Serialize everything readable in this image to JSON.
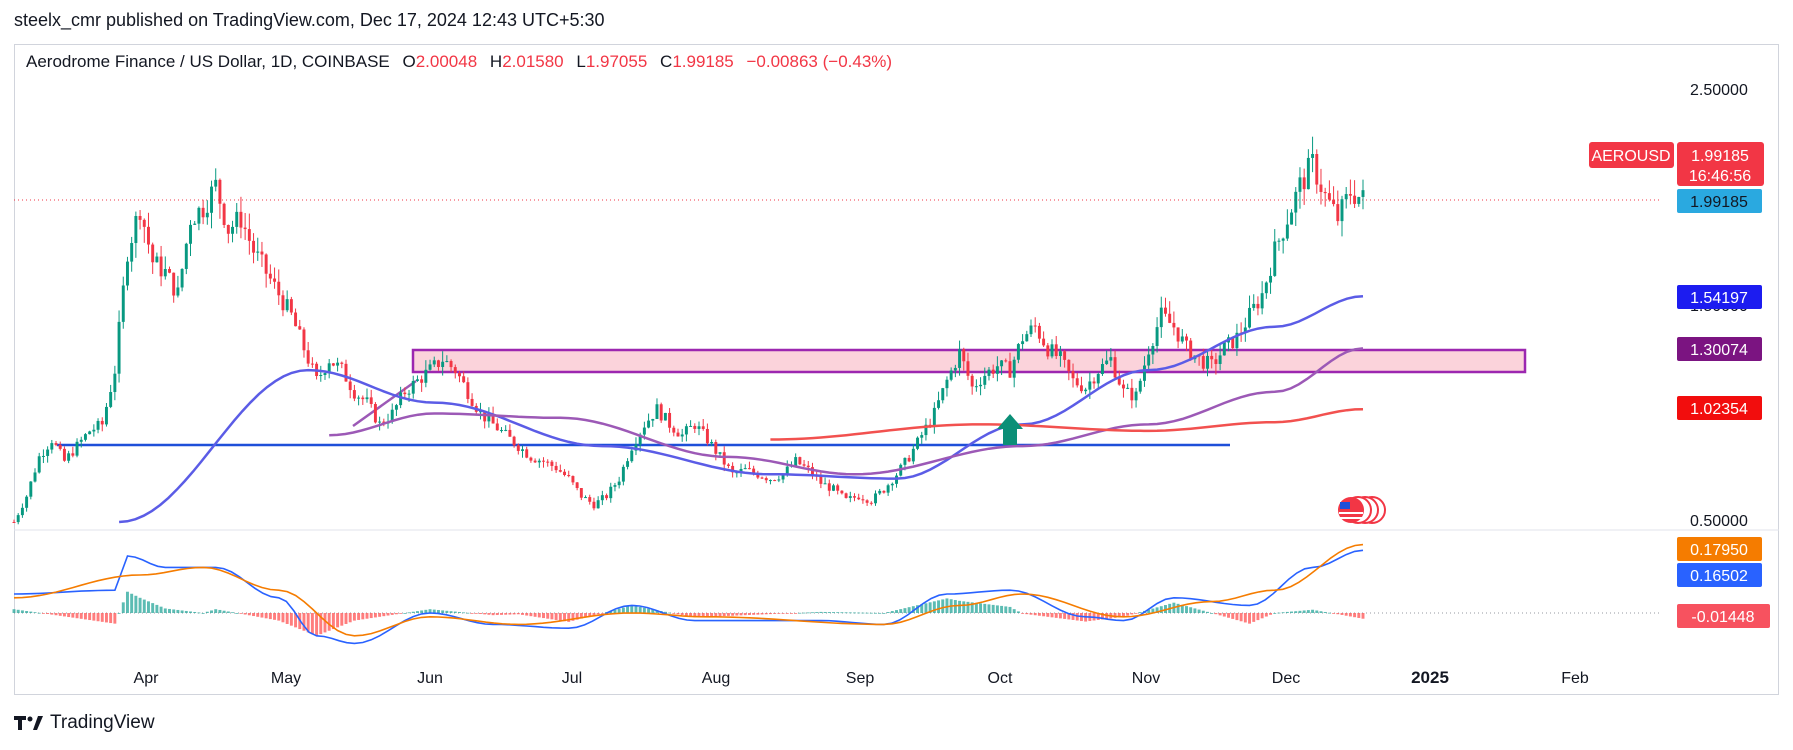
{
  "published": "steelx_cmr published on TradingView.com, Dec 17, 2024 12:43 UTC+5:30",
  "legend": {
    "symbol": "Aerodrome Finance / US Dollar, 1D, COINBASE",
    "o_label": "O",
    "o_value": "2.00048",
    "h_label": "H",
    "h_value": "2.01580",
    "l_label": "L",
    "l_value": "1.97055",
    "c_label": "C",
    "c_value": "1.99185",
    "change": "−0.00863 (−0.43%)"
  },
  "brand": "TradingView",
  "chart_data": {
    "type": "candlestick",
    "title": "Aerodrome Finance / US Dollar, 1D, COINBASE",
    "price_axis_ticks": [
      "2.50000",
      "0.50000"
    ],
    "time_axis_ticks": [
      "Apr",
      "May",
      "Jun",
      "Jul",
      "Aug",
      "Sep",
      "Oct",
      "Nov",
      "Dec",
      "2025",
      "Feb"
    ],
    "price_labels": {
      "ticker": "AEROUSD",
      "last": "1.99185",
      "countdown": "16:46:56",
      "last_line": "1.99185",
      "ma_blue": "1.54197",
      "ma_purple": "1.30074",
      "ma_red": "1.02354",
      "macd_signal": "0.17950",
      "macd_line": "0.16502",
      "macd_hist": "-0.01448"
    },
    "colors": {
      "up": "#089981",
      "down": "#f23645",
      "ma_blue": "#5b5ce6",
      "ma_purple": "#9c59b6",
      "ma_red": "#f2514f",
      "zone_fill": "#fbd3db",
      "zone_border": "#9c27b0",
      "support": "#1e4fd9",
      "macd": "#2962ff",
      "signal": "#f57c00",
      "arrow": "#0b8f77"
    },
    "ohlc_close_path": [
      [
        0,
        0.5
      ],
      [
        3,
        0.62
      ],
      [
        6,
        0.8
      ],
      [
        9,
        0.88
      ],
      [
        12,
        0.78
      ],
      [
        15,
        0.85
      ],
      [
        18,
        0.92
      ],
      [
        21,
        0.95
      ],
      [
        24,
        1.2
      ],
      [
        27,
        1.75
      ],
      [
        30,
        1.95
      ],
      [
        33,
        1.7
      ],
      [
        36,
        1.65
      ],
      [
        39,
        1.55
      ],
      [
        42,
        1.9
      ],
      [
        45,
        1.95
      ],
      [
        48,
        2.05
      ],
      [
        51,
        1.85
      ],
      [
        54,
        1.9
      ],
      [
        57,
        1.75
      ],
      [
        60,
        1.65
      ],
      [
        63,
        1.55
      ],
      [
        66,
        1.45
      ],
      [
        69,
        1.3
      ],
      [
        72,
        1.15
      ],
      [
        75,
        1.25
      ],
      [
        78,
        1.2
      ],
      [
        81,
        1.1
      ],
      [
        84,
        1.05
      ],
      [
        87,
        0.95
      ],
      [
        90,
        1.0
      ],
      [
        93,
        1.1
      ],
      [
        96,
        1.15
      ],
      [
        99,
        1.2
      ],
      [
        102,
        1.25
      ],
      [
        105,
        1.2
      ],
      [
        108,
        1.1
      ],
      [
        111,
        1.0
      ],
      [
        114,
        0.95
      ],
      [
        117,
        0.9
      ],
      [
        120,
        0.85
      ],
      [
        123,
        0.8
      ],
      [
        126,
        0.78
      ],
      [
        129,
        0.75
      ],
      [
        132,
        0.7
      ],
      [
        135,
        0.62
      ],
      [
        138,
        0.58
      ],
      [
        141,
        0.62
      ],
      [
        144,
        0.7
      ],
      [
        147,
        0.85
      ],
      [
        150,
        0.95
      ],
      [
        153,
        1.02
      ],
      [
        156,
        0.95
      ],
      [
        159,
        0.9
      ],
      [
        162,
        0.95
      ],
      [
        165,
        0.88
      ],
      [
        168,
        0.8
      ],
      [
        171,
        0.72
      ],
      [
        174,
        0.74
      ],
      [
        177,
        0.72
      ],
      [
        180,
        0.7
      ],
      [
        183,
        0.72
      ],
      [
        186,
        0.78
      ],
      [
        189,
        0.74
      ],
      [
        192,
        0.68
      ],
      [
        195,
        0.65
      ],
      [
        198,
        0.6
      ],
      [
        201,
        0.62
      ],
      [
        204,
        0.6
      ],
      [
        207,
        0.65
      ],
      [
        210,
        0.72
      ],
      [
        213,
        0.8
      ],
      [
        216,
        0.9
      ],
      [
        219,
        1.0
      ],
      [
        222,
        1.15
      ],
      [
        225,
        1.28
      ],
      [
        228,
        1.12
      ],
      [
        231,
        1.18
      ],
      [
        234,
        1.22
      ],
      [
        237,
        1.2
      ],
      [
        240,
        1.35
      ],
      [
        243,
        1.4
      ],
      [
        246,
        1.3
      ],
      [
        249,
        1.25
      ],
      [
        252,
        1.15
      ],
      [
        255,
        1.12
      ],
      [
        258,
        1.2
      ],
      [
        261,
        1.25
      ],
      [
        264,
        1.1
      ],
      [
        267,
        1.08
      ],
      [
        270,
        1.3
      ],
      [
        273,
        1.45
      ],
      [
        276,
        1.4
      ],
      [
        279,
        1.3
      ],
      [
        282,
        1.25
      ],
      [
        285,
        1.22
      ],
      [
        288,
        1.3
      ],
      [
        291,
        1.35
      ],
      [
        294,
        1.45
      ],
      [
        297,
        1.55
      ],
      [
        300,
        1.75
      ],
      [
        303,
        1.9
      ],
      [
        306,
        2.05
      ],
      [
        309,
        2.15
      ],
      [
        312,
        2.0
      ],
      [
        315,
        1.9
      ],
      [
        318,
        2.02
      ],
      [
        321,
        1.99
      ]
    ],
    "moving_averages": {
      "blue": [
        [
          25,
          0.5
        ],
        [
          70,
          1.2
        ],
        [
          100,
          1.05
        ],
        [
          140,
          0.85
        ],
        [
          180,
          0.72
        ],
        [
          210,
          0.7
        ],
        [
          240,
          0.95
        ],
        [
          270,
          1.2
        ],
        [
          300,
          1.4
        ],
        [
          321,
          1.54
        ]
      ],
      "purple": [
        [
          75,
          0.9
        ],
        [
          100,
          1.0
        ],
        [
          130,
          0.98
        ],
        [
          170,
          0.8
        ],
        [
          200,
          0.72
        ],
        [
          240,
          0.85
        ],
        [
          270,
          0.95
        ],
        [
          300,
          1.1
        ],
        [
          321,
          1.3
        ]
      ],
      "red": [
        [
          180,
          0.88
        ],
        [
          230,
          0.95
        ],
        [
          270,
          0.92
        ],
        [
          300,
          0.96
        ],
        [
          321,
          1.02
        ]
      ]
    },
    "support_level": 0.82,
    "resistance_zone": [
      1.18,
      1.3
    ],
    "macd": {
      "macd_line": [
        [
          0,
          0.05
        ],
        [
          24,
          0.06
        ],
        [
          27,
          0.15
        ],
        [
          36,
          0.12
        ],
        [
          48,
          0.12
        ],
        [
          63,
          0.04
        ],
        [
          72,
          -0.06
        ],
        [
          81,
          -0.08
        ],
        [
          99,
          0.0
        ],
        [
          114,
          -0.03
        ],
        [
          132,
          -0.04
        ],
        [
          147,
          0.02
        ],
        [
          162,
          -0.02
        ],
        [
          192,
          -0.02
        ],
        [
          207,
          -0.03
        ],
        [
          222,
          0.05
        ],
        [
          237,
          0.06
        ],
        [
          255,
          -0.01
        ],
        [
          264,
          -0.02
        ],
        [
          276,
          0.04
        ],
        [
          294,
          0.02
        ],
        [
          309,
          0.12
        ],
        [
          321,
          0.165
        ]
      ],
      "signal_line": [
        [
          0,
          0.04
        ],
        [
          30,
          0.1
        ],
        [
          45,
          0.12
        ],
        [
          63,
          0.06
        ],
        [
          81,
          -0.06
        ],
        [
          99,
          -0.01
        ],
        [
          120,
          -0.03
        ],
        [
          147,
          0.0
        ],
        [
          165,
          -0.01
        ],
        [
          207,
          -0.03
        ],
        [
          225,
          0.02
        ],
        [
          240,
          0.05
        ],
        [
          264,
          -0.01
        ],
        [
          285,
          0.03
        ],
        [
          300,
          0.06
        ],
        [
          321,
          0.18
        ]
      ]
    }
  }
}
